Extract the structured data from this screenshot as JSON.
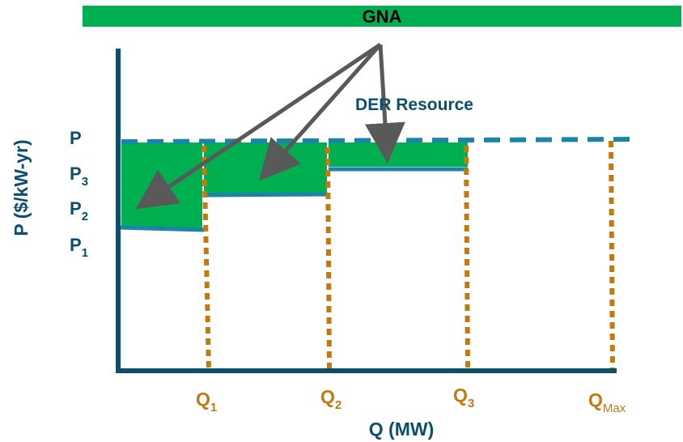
{
  "banner": {
    "label": "GNA",
    "color": "#00b050"
  },
  "resource_label": "DER Resource",
  "y_axis": {
    "title": "P ($/kW-yr)",
    "levels": [
      {
        "base": "P",
        "sub": ""
      },
      {
        "base": "P",
        "sub": "3"
      },
      {
        "base": "P",
        "sub": "2"
      },
      {
        "base": "P",
        "sub": "1"
      }
    ]
  },
  "x_axis": {
    "title": "Q (MW)",
    "points": [
      {
        "base": "Q",
        "sub": "1"
      },
      {
        "base": "Q",
        "sub": "2"
      },
      {
        "base": "Q",
        "sub": "3"
      },
      {
        "base": "Q",
        "sub": "Max"
      }
    ]
  },
  "colors": {
    "axis": "#0b4f6c",
    "step": "#1b84a8",
    "dashed_price": "#1b84a8",
    "fill": "#00b050",
    "dotted": "#c07a10",
    "arrow": "#595959",
    "text_dark": "#0b4f6c",
    "text_q": "#c07a10"
  },
  "icons": {
    "pointer": "arrow-icon"
  }
}
